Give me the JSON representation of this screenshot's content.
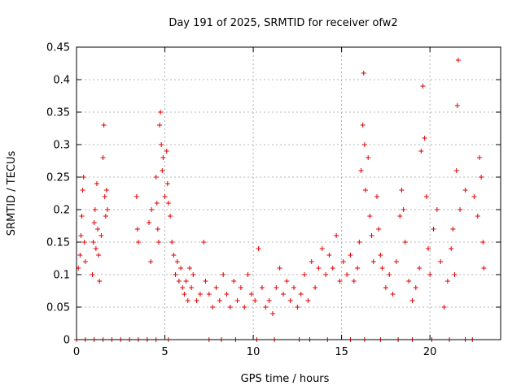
{
  "chart_data": {
    "type": "scatter",
    "title": "Day 191 of 2025, SRMTID for receiver ofw2",
    "xlabel": "GPS time / hours",
    "ylabel": "SRMTID / TECUs",
    "xlim": [
      0,
      24
    ],
    "ylim": [
      0,
      0.45
    ],
    "xticks": [
      0,
      5,
      10,
      15,
      20
    ],
    "xtick_labels": [
      "0",
      "5",
      "10",
      "15",
      "20"
    ],
    "yticks": [
      0,
      0.05,
      0.1,
      0.15,
      0.2,
      0.25,
      0.3,
      0.35,
      0.4,
      0.45
    ],
    "ytick_labels": [
      "0",
      "0.05",
      "0.1",
      "0.15",
      "0.2",
      "0.25",
      "0.3",
      "0.35",
      "0.4",
      "0.45"
    ],
    "grid": true,
    "marker": "+",
    "color": "#e00000",
    "series": [
      {
        "name": "SRMTID",
        "points": [
          [
            0.1,
            0.11
          ],
          [
            0.2,
            0.13
          ],
          [
            0.25,
            0.16
          ],
          [
            0.3,
            0.19
          ],
          [
            0.35,
            0.23
          ],
          [
            0.4,
            0.25
          ],
          [
            0.45,
            0.15
          ],
          [
            0.5,
            0.12
          ],
          [
            0.9,
            0.1
          ],
          [
            0.95,
            0.15
          ],
          [
            1.0,
            0.18
          ],
          [
            1.05,
            0.2
          ],
          [
            1.1,
            0.14
          ],
          [
            1.15,
            0.24
          ],
          [
            1.2,
            0.17
          ],
          [
            1.25,
            0.13
          ],
          [
            1.3,
            0.09
          ],
          [
            1.4,
            0.16
          ],
          [
            1.5,
            0.28
          ],
          [
            1.55,
            0.33
          ],
          [
            1.6,
            0.22
          ],
          [
            1.65,
            0.19
          ],
          [
            1.7,
            0.23
          ],
          [
            1.75,
            0.2
          ],
          [
            3.4,
            0.22
          ],
          [
            3.45,
            0.17
          ],
          [
            3.5,
            0.15
          ],
          [
            4.1,
            0.18
          ],
          [
            4.2,
            0.12
          ],
          [
            4.25,
            0.2
          ],
          [
            4.5,
            0.25
          ],
          [
            4.55,
            0.21
          ],
          [
            4.6,
            0.17
          ],
          [
            4.65,
            0.15
          ],
          [
            4.7,
            0.33
          ],
          [
            4.75,
            0.35
          ],
          [
            4.8,
            0.3
          ],
          [
            4.85,
            0.26
          ],
          [
            4.9,
            0.28
          ],
          [
            5.0,
            0.22
          ],
          [
            5.1,
            0.29
          ],
          [
            5.15,
            0.24
          ],
          [
            5.2,
            0.21
          ],
          [
            5.3,
            0.19
          ],
          [
            5.4,
            0.15
          ],
          [
            5.5,
            0.13
          ],
          [
            5.6,
            0.1
          ],
          [
            5.7,
            0.12
          ],
          [
            5.8,
            0.09
          ],
          [
            5.9,
            0.11
          ],
          [
            6.0,
            0.08
          ],
          [
            6.1,
            0.07
          ],
          [
            6.2,
            0.09
          ],
          [
            6.3,
            0.06
          ],
          [
            6.4,
            0.11
          ],
          [
            6.5,
            0.08
          ],
          [
            6.6,
            0.1
          ],
          [
            6.8,
            0.06
          ],
          [
            7.0,
            0.07
          ],
          [
            7.2,
            0.15
          ],
          [
            7.3,
            0.09
          ],
          [
            7.5,
            0.07
          ],
          [
            7.7,
            0.05
          ],
          [
            7.9,
            0.08
          ],
          [
            8.1,
            0.06
          ],
          [
            8.3,
            0.1
          ],
          [
            8.5,
            0.07
          ],
          [
            8.7,
            0.05
          ],
          [
            8.9,
            0.09
          ],
          [
            9.1,
            0.06
          ],
          [
            9.3,
            0.08
          ],
          [
            9.5,
            0.05
          ],
          [
            9.7,
            0.1
          ],
          [
            9.9,
            0.07
          ],
          [
            10.1,
            0.06
          ],
          [
            10.3,
            0.14
          ],
          [
            10.5,
            0.08
          ],
          [
            10.7,
            0.05
          ],
          [
            10.9,
            0.06
          ],
          [
            11.1,
            0.04
          ],
          [
            11.3,
            0.08
          ],
          [
            11.5,
            0.11
          ],
          [
            11.7,
            0.07
          ],
          [
            11.9,
            0.09
          ],
          [
            12.1,
            0.06
          ],
          [
            12.3,
            0.08
          ],
          [
            12.5,
            0.05
          ],
          [
            12.7,
            0.07
          ],
          [
            12.9,
            0.1
          ],
          [
            13.1,
            0.06
          ],
          [
            13.3,
            0.12
          ],
          [
            13.5,
            0.08
          ],
          [
            13.7,
            0.11
          ],
          [
            13.9,
            0.14
          ],
          [
            14.1,
            0.1
          ],
          [
            14.3,
            0.13
          ],
          [
            14.5,
            0.11
          ],
          [
            14.7,
            0.16
          ],
          [
            14.9,
            0.09
          ],
          [
            15.1,
            0.12
          ],
          [
            15.3,
            0.1
          ],
          [
            15.5,
            0.13
          ],
          [
            15.7,
            0.09
          ],
          [
            15.9,
            0.11
          ],
          [
            16.0,
            0.15
          ],
          [
            16.1,
            0.26
          ],
          [
            16.2,
            0.33
          ],
          [
            16.25,
            0.41
          ],
          [
            16.3,
            0.3
          ],
          [
            16.35,
            0.23
          ],
          [
            16.5,
            0.28
          ],
          [
            16.6,
            0.19
          ],
          [
            16.7,
            0.16
          ],
          [
            16.8,
            0.12
          ],
          [
            17.0,
            0.22
          ],
          [
            17.1,
            0.17
          ],
          [
            17.2,
            0.13
          ],
          [
            17.3,
            0.11
          ],
          [
            17.5,
            0.08
          ],
          [
            17.7,
            0.1
          ],
          [
            17.9,
            0.07
          ],
          [
            18.1,
            0.12
          ],
          [
            18.3,
            0.19
          ],
          [
            18.4,
            0.23
          ],
          [
            18.5,
            0.2
          ],
          [
            18.6,
            0.15
          ],
          [
            18.8,
            0.09
          ],
          [
            19.0,
            0.06
          ],
          [
            19.2,
            0.08
          ],
          [
            19.4,
            0.11
          ],
          [
            19.5,
            0.29
          ],
          [
            19.6,
            0.39
          ],
          [
            19.7,
            0.31
          ],
          [
            19.8,
            0.22
          ],
          [
            19.9,
            0.14
          ],
          [
            20.0,
            0.1
          ],
          [
            20.2,
            0.17
          ],
          [
            20.4,
            0.2
          ],
          [
            20.6,
            0.12
          ],
          [
            20.8,
            0.05
          ],
          [
            21.0,
            0.09
          ],
          [
            21.2,
            0.14
          ],
          [
            21.3,
            0.17
          ],
          [
            21.4,
            0.1
          ],
          [
            21.5,
            0.26
          ],
          [
            21.55,
            0.36
          ],
          [
            21.6,
            0.43
          ],
          [
            21.7,
            0.2
          ],
          [
            22.0,
            0.23
          ],
          [
            22.5,
            0.22
          ],
          [
            22.7,
            0.19
          ],
          [
            22.8,
            0.28
          ],
          [
            22.9,
            0.25
          ],
          [
            23.0,
            0.15
          ],
          [
            23.05,
            0.11
          ],
          [
            0.0,
            0.0
          ],
          [
            0.5,
            0.0
          ],
          [
            1.0,
            0.0
          ],
          [
            1.5,
            0.0
          ],
          [
            2.0,
            0.0
          ],
          [
            2.5,
            0.0
          ],
          [
            3.0,
            0.0
          ],
          [
            3.5,
            0.0
          ],
          [
            4.0,
            0.0
          ],
          [
            4.5,
            0.0
          ],
          [
            5.2,
            0.0
          ],
          [
            7.5,
            0.0
          ],
          [
            8.2,
            0.0
          ],
          [
            9.0,
            0.0
          ],
          [
            10.2,
            0.0
          ],
          [
            11.2,
            0.0
          ],
          [
            12.6,
            0.0
          ],
          [
            13.2,
            0.0
          ],
          [
            14.2,
            0.0
          ],
          [
            15.5,
            0.0
          ],
          [
            16.3,
            0.0
          ],
          [
            17.2,
            0.0
          ],
          [
            18.2,
            0.0
          ],
          [
            19.0,
            0.0
          ],
          [
            20.1,
            0.0
          ],
          [
            21.1,
            0.0
          ],
          [
            22.0,
            0.0
          ],
          [
            22.4,
            0.0
          ]
        ]
      }
    ]
  }
}
